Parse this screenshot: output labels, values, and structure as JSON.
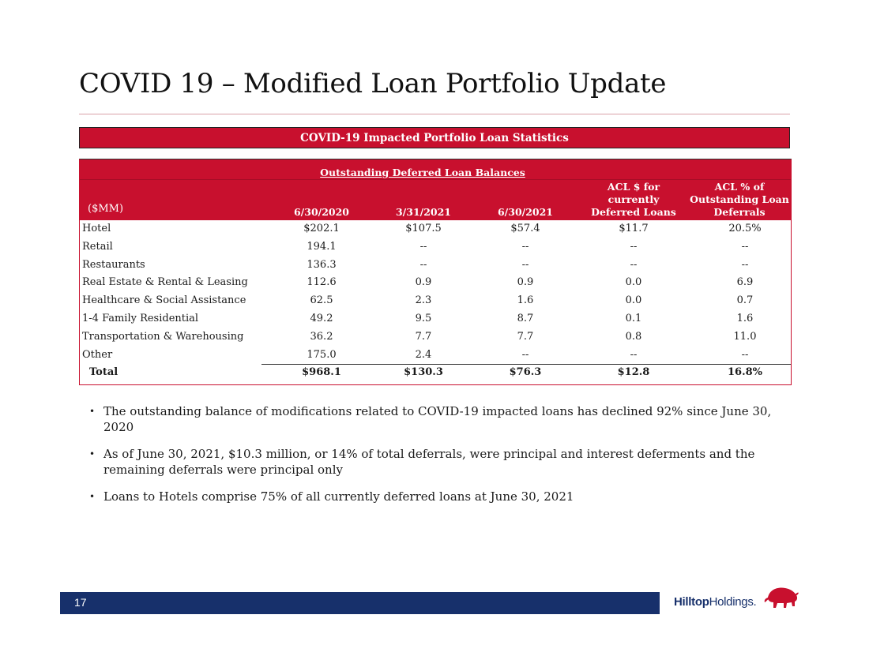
{
  "title": "COVID 19 – Modified Loan Portfolio Update",
  "banner": "COVID-19 Impacted Portfolio Loan Statistics",
  "table": {
    "group_header": "Outstanding Deferred Loan Balances",
    "unit_label": "($MM)",
    "columns": [
      "6/30/2020",
      "3/31/2021",
      "6/30/2021",
      "ACL $ for currently Deferred Loans",
      "ACL % of Outstanding Loan Deferrals"
    ],
    "rows": [
      {
        "label": "Hotel",
        "values": [
          "$202.1",
          "$107.5",
          "$57.4",
          "$11.7",
          "20.5%"
        ]
      },
      {
        "label": "Retail",
        "values": [
          "194.1",
          "--",
          "--",
          "--",
          "--"
        ]
      },
      {
        "label": "Restaurants",
        "values": [
          "136.3",
          "--",
          "--",
          "--",
          "--"
        ]
      },
      {
        "label": "Real Estate & Rental & Leasing",
        "values": [
          "112.6",
          "0.9",
          "0.9",
          "0.0",
          "6.9"
        ]
      },
      {
        "label": "Healthcare & Social Assistance",
        "values": [
          "62.5",
          "2.3",
          "1.6",
          "0.0",
          "0.7"
        ]
      },
      {
        "label": "1-4 Family Residential",
        "values": [
          "49.2",
          "9.5",
          "8.7",
          "0.1",
          "1.6"
        ]
      },
      {
        "label": "Transportation & Warehousing",
        "values": [
          "36.2",
          "7.7",
          "7.7",
          "0.8",
          "11.0"
        ]
      },
      {
        "label": "Other",
        "values": [
          "175.0",
          "2.4",
          "--",
          "--",
          "--"
        ]
      }
    ],
    "total": {
      "label": "Total",
      "values": [
        "$968.1",
        "$130.3",
        "$76.3",
        "$12.8",
        "16.8%"
      ]
    }
  },
  "bullets": [
    "The outstanding balance of modifications related to COVID-19 impacted loans has declined 92% since June 30, 2020",
    "As of June 30, 2021, $10.3 million, or 14% of total deferrals, were principal and interest deferments and the remaining deferrals were principal only",
    "Loans to Hotels comprise 75% of all currently deferred loans at June 30, 2021"
  ],
  "footer": {
    "page_number": "17",
    "logo_bold": "Hilltop",
    "logo_regular": "Holdings",
    "logo_mark": "."
  },
  "colors": {
    "brand_red": "#c8102e",
    "brand_navy": "#17306b"
  }
}
